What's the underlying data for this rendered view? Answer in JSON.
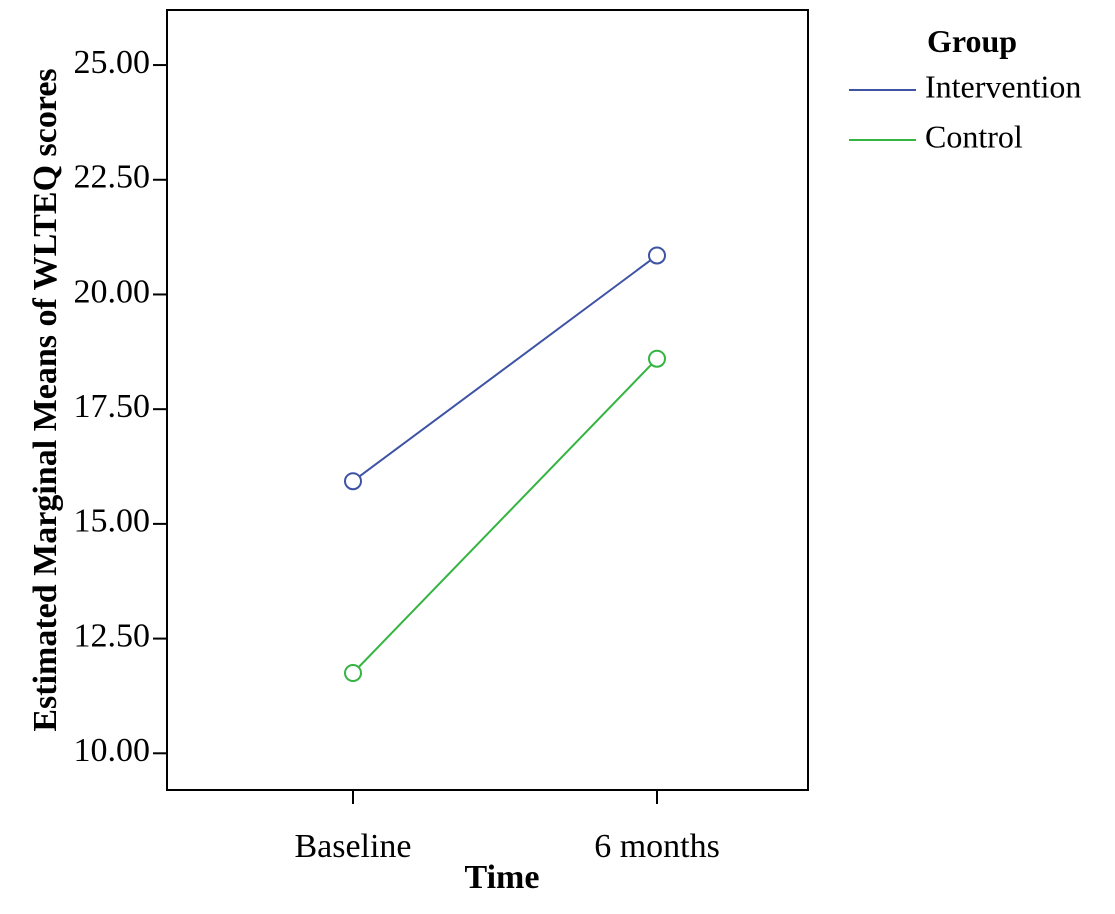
{
  "chart_data": {
    "type": "line",
    "title": "",
    "xlabel": "Time",
    "ylabel": "Estimated Marginal Means of WLTEQ scores",
    "categories": [
      "Baseline",
      "6 months"
    ],
    "ylim": [
      9.2,
      26.2
    ],
    "yticks": [
      10.0,
      12.5,
      15.0,
      17.5,
      20.0,
      22.5,
      25.0
    ],
    "ytick_labels": [
      "10.00",
      "12.50",
      "15.00",
      "17.50",
      "20.00",
      "22.50",
      "25.00"
    ],
    "grid": false,
    "legend": {
      "title": "Group",
      "placement": "outside-right-top"
    },
    "series": [
      {
        "name": "Intervention",
        "values": [
          15.93,
          20.85
        ],
        "color": "#3e53a4",
        "marker": "open-circle"
      },
      {
        "name": "Control",
        "values": [
          11.75,
          18.6
        ],
        "color": "#34b441",
        "marker": "open-circle"
      }
    ]
  }
}
